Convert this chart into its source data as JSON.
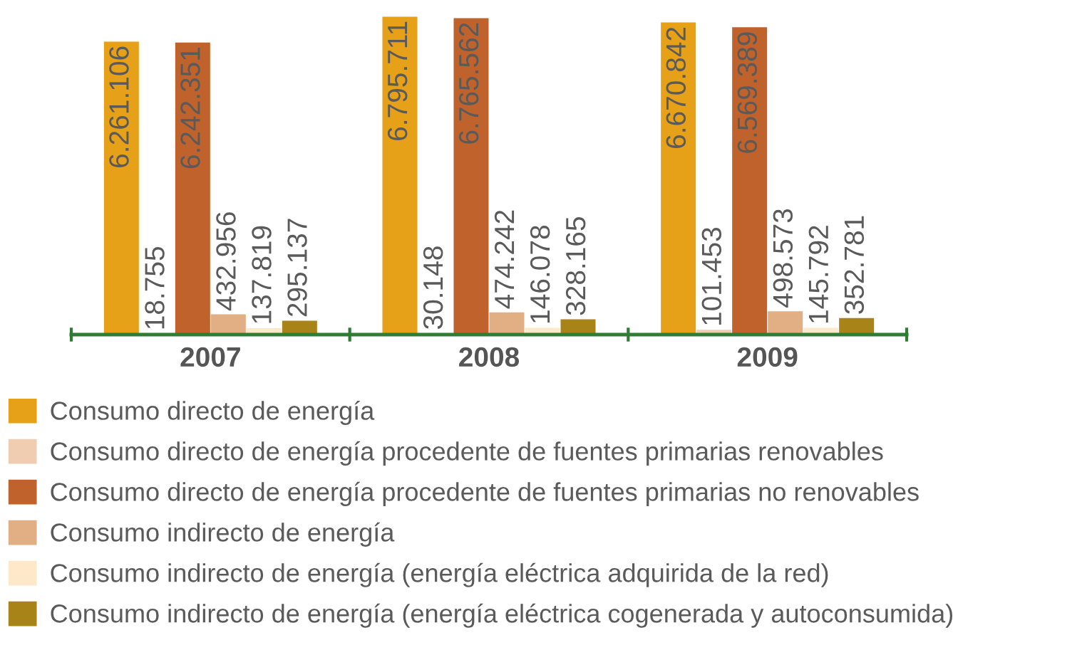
{
  "chart_data": {
    "type": "bar",
    "categories": [
      "2007",
      "2008",
      "2009"
    ],
    "series": [
      {
        "name": "Consumo directo de energía",
        "color": "#e6a118",
        "values": [
          6261106,
          6795711,
          6670842
        ],
        "value_labels": [
          "6.261.106",
          "6.795.711",
          "6.670.842"
        ]
      },
      {
        "name": "Consumo directo de energía procedente de fuentes primarias renovables",
        "color": "#f0cdb0",
        "values": [
          18755,
          30148,
          101453
        ],
        "value_labels": [
          "18.755",
          "30.148",
          "101.453"
        ]
      },
      {
        "name": "Consumo directo de energía procedente de fuentes primarias no renovables",
        "color": "#c0622b",
        "values": [
          6242351,
          6765562,
          6569389
        ],
        "value_labels": [
          "6.242.351",
          "6.765.562",
          "6.569.389"
        ]
      },
      {
        "name": "Consumo indirecto de energía",
        "color": "#e2ae84",
        "values": [
          432956,
          474242,
          498573
        ],
        "value_labels": [
          "432.956",
          "474.242",
          "498.573"
        ]
      },
      {
        "name": "Consumo indirecto de energía (energía eléctrica adquirida de la red)",
        "color": "#fde9c9",
        "values": [
          137819,
          146078,
          145792
        ],
        "value_labels": [
          "137.819",
          "146.078",
          "145.792"
        ]
      },
      {
        "name": "Consumo indirecto de energía (energía eléctrica cogenerada y autoconsumida)",
        "color": "#a88418",
        "values": [
          295137,
          328165,
          352781
        ],
        "value_labels": [
          "295.137",
          "328.165",
          "352.781"
        ]
      }
    ],
    "legend": "bottom",
    "grid": false
  }
}
